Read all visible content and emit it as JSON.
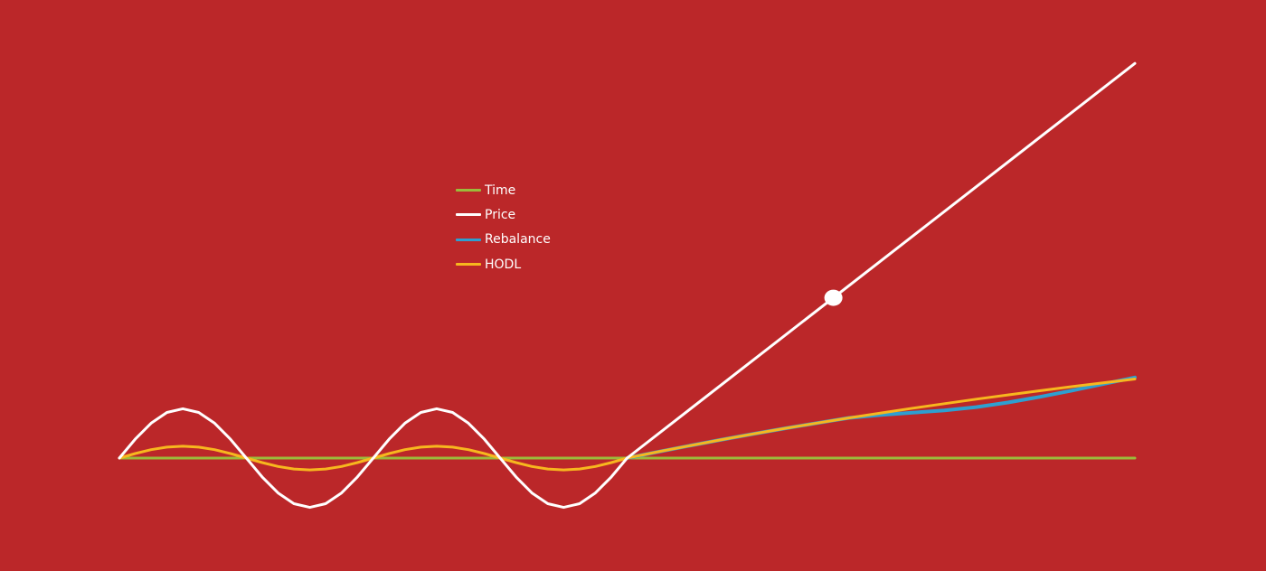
{
  "chart_data": {
    "type": "line",
    "title": "",
    "xlabel": "",
    "ylabel": "",
    "xlim": [
      0,
      16
    ],
    "ylim": [
      -1.5,
      10
    ],
    "grid": false,
    "legend_position": "top-left of center",
    "background_color": "#bb2729",
    "legend": [
      {
        "name": "Time",
        "color": "#9bbb3b"
      },
      {
        "name": "Price",
        "color": "#ffffff"
      },
      {
        "name": "Rebalance",
        "color": "#2e9fd0"
      },
      {
        "name": "HODL",
        "color": "#f7b71e"
      }
    ],
    "series": [
      {
        "name": "Time",
        "color": "#9bbb3b",
        "x": [
          0,
          16
        ],
        "y": [
          0,
          0
        ]
      },
      {
        "name": "Rebalance",
        "color": "#2e9fd0",
        "x": [
          8.0,
          8.5,
          9.0,
          9.5,
          10.0,
          10.5,
          11.0,
          11.25,
          11.5,
          12.0,
          12.5,
          13.0,
          13.5,
          14.0,
          14.5,
          15.0,
          15.5,
          16.0
        ],
        "y": [
          0.0,
          0.195,
          0.383,
          0.564,
          0.738,
          0.906,
          1.067,
          1.145,
          1.222,
          1.31,
          1.38,
          1.45,
          1.55,
          1.69,
          1.86,
          2.05,
          2.25,
          2.45
        ]
      },
      {
        "name": "HODL",
        "color": "#f7b71e",
        "x": [
          0.0,
          0.25,
          0.5,
          0.75,
          1.0,
          1.25,
          1.5,
          1.75,
          2.0,
          2.25,
          2.5,
          2.75,
          3.0,
          3.25,
          3.5,
          3.75,
          4.0,
          4.25,
          4.5,
          4.75,
          5.0,
          5.25,
          5.5,
          5.75,
          6.0,
          6.25,
          6.5,
          6.75,
          7.0,
          7.25,
          7.5,
          7.75,
          8.0,
          8.5,
          9.0,
          9.5,
          10.0,
          10.5,
          11.0,
          11.5,
          12.0,
          12.5,
          13.0,
          13.5,
          14.0,
          14.5,
          15.0,
          15.5,
          16.0
        ],
        "y": [
          0.0,
          0.138,
          0.255,
          0.333,
          0.36,
          0.333,
          0.255,
          0.138,
          0.0,
          -0.138,
          -0.255,
          -0.333,
          -0.36,
          -0.333,
          -0.255,
          -0.138,
          0.0,
          0.138,
          0.255,
          0.333,
          0.36,
          0.333,
          0.255,
          0.138,
          0.0,
          -0.138,
          -0.255,
          -0.333,
          -0.36,
          -0.333,
          -0.255,
          -0.138,
          0.0,
          0.195,
          0.383,
          0.564,
          0.738,
          0.906,
          1.067,
          1.222,
          1.371,
          1.516,
          1.655,
          1.79,
          1.921,
          2.047,
          2.17,
          2.289,
          2.405
        ]
      },
      {
        "name": "Price",
        "color": "#ffffff",
        "x": [
          0.0,
          0.25,
          0.5,
          0.75,
          1.0,
          1.25,
          1.5,
          1.75,
          2.0,
          2.25,
          2.5,
          2.75,
          3.0,
          3.25,
          3.5,
          3.75,
          4.0,
          4.25,
          4.5,
          4.75,
          5.0,
          5.25,
          5.5,
          5.75,
          6.0,
          6.25,
          6.5,
          6.75,
          7.0,
          7.25,
          7.5,
          7.75,
          8.0,
          16.0
        ],
        "y": [
          0.0,
          0.574,
          1.061,
          1.386,
          1.5,
          1.386,
          1.061,
          0.574,
          0.0,
          -0.574,
          -1.061,
          -1.386,
          -1.5,
          -1.386,
          -1.061,
          -0.574,
          0.0,
          0.574,
          1.061,
          1.386,
          1.5,
          1.386,
          1.061,
          0.574,
          0.0,
          -0.574,
          -1.061,
          -1.386,
          -1.5,
          -1.386,
          -1.061,
          -0.574,
          0.0,
          12.0
        ]
      }
    ],
    "markers": [
      {
        "series": "Price",
        "x": 11.25,
        "y": 4.875,
        "color": "#ffffff"
      }
    ]
  }
}
